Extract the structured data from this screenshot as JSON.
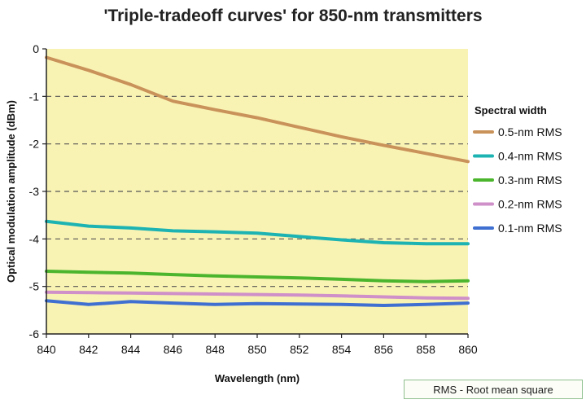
{
  "chart_data": {
    "type": "line",
    "title": "'Triple-tradeoff curves' for 850-nm transmitters",
    "xlabel": "Wavelength (nm)",
    "ylabel": "Optical modulation amplitude (dBm)",
    "x": [
      840,
      842,
      844,
      846,
      848,
      850,
      852,
      854,
      856,
      858,
      860
    ],
    "xticks": [
      "840",
      "842",
      "844",
      "846",
      "848",
      "850",
      "852",
      "854",
      "856",
      "858",
      "860"
    ],
    "yticks": [
      "0",
      "-1",
      "-2",
      "-3",
      "-4",
      "-5",
      "-6"
    ],
    "xlim": [
      840,
      860
    ],
    "ylim": [
      -6,
      0
    ],
    "grid": "horizontal dashed",
    "legend_title": "Spectral width",
    "legend_position": "right",
    "series": [
      {
        "name": "0.5-nm RMS",
        "color": "#c9925a",
        "values": [
          -0.18,
          -0.45,
          -0.75,
          -1.1,
          -1.28,
          -1.45,
          -1.65,
          -1.85,
          -2.03,
          -2.2,
          -2.37
        ]
      },
      {
        "name": "0.4-nm RMS",
        "color": "#1db3b3",
        "values": [
          -3.63,
          -3.73,
          -3.77,
          -3.83,
          -3.85,
          -3.88,
          -3.95,
          -4.02,
          -4.08,
          -4.1,
          -4.1
        ]
      },
      {
        "name": "0.3-nm RMS",
        "color": "#4cb52e",
        "values": [
          -4.68,
          -4.7,
          -4.72,
          -4.75,
          -4.78,
          -4.8,
          -4.82,
          -4.85,
          -4.88,
          -4.9,
          -4.88
        ]
      },
      {
        "name": "0.2-nm RMS",
        "color": "#cf8fc8",
        "values": [
          -5.12,
          -5.13,
          -5.14,
          -5.15,
          -5.16,
          -5.17,
          -5.18,
          -5.2,
          -5.22,
          -5.24,
          -5.25
        ]
      },
      {
        "name": "0.1-nm RMS",
        "color": "#3f6fd1",
        "values": [
          -5.3,
          -5.38,
          -5.32,
          -5.35,
          -5.38,
          -5.36,
          -5.37,
          -5.38,
          -5.4,
          -5.38,
          -5.35
        ]
      }
    ],
    "colors": {
      "plot_background": "#f9f3b3",
      "grid": "#555555"
    }
  },
  "footnote": "RMS - Root mean square"
}
